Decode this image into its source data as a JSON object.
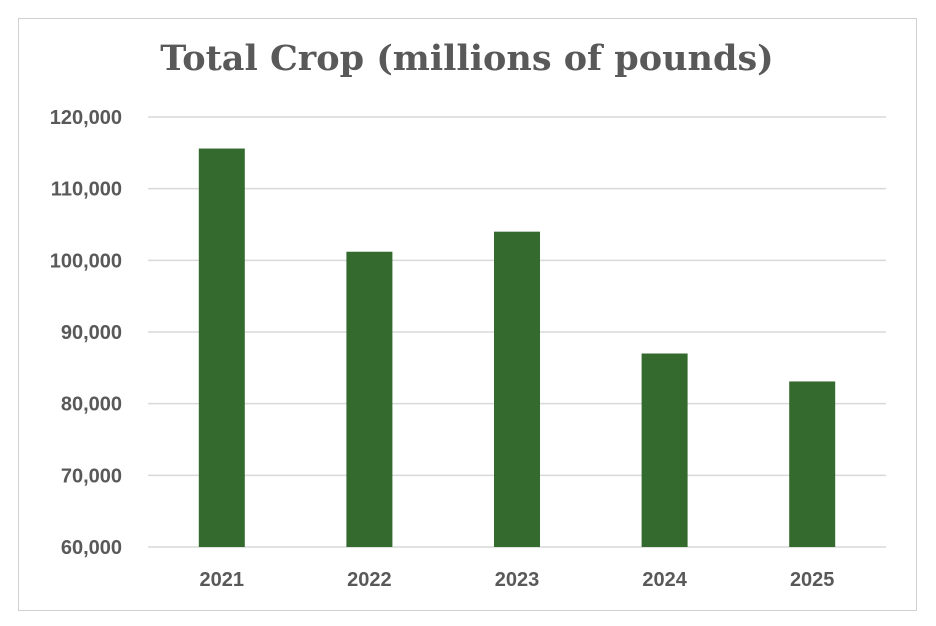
{
  "chart_data": {
    "type": "bar",
    "title": "Total Crop (millions of pounds)",
    "xlabel": "",
    "ylabel": "",
    "categories": [
      "2021",
      "2022",
      "2023",
      "2024",
      "2025"
    ],
    "values": [
      115600,
      101200,
      104000,
      87000,
      83100
    ],
    "ylim": [
      60000,
      120000
    ],
    "yticks": [
      60000,
      70000,
      80000,
      90000,
      100000,
      110000,
      120000
    ],
    "ytick_labels": [
      "60,000",
      "70,000",
      "80,000",
      "90,000",
      "100,000",
      "110,000",
      "120,000"
    ],
    "grid": true,
    "legend": "none",
    "colors": {
      "bar": "#346a2e",
      "grid": "#d9d9d9",
      "text": "#595959"
    }
  }
}
